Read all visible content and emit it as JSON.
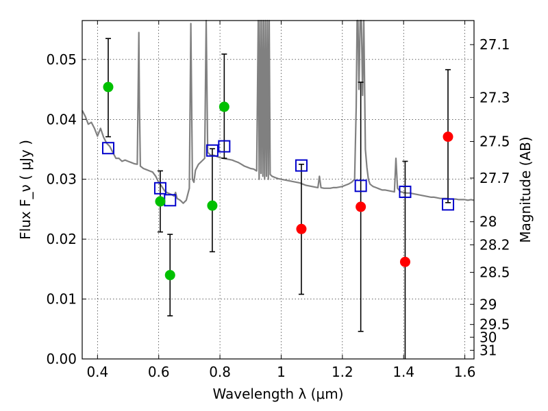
{
  "chart_data": {
    "type": "scatter",
    "title": "",
    "xlabel": "Wavelength  λ (μm)",
    "ylabel": "Flux  F_ν  ( μJy )",
    "ylabel_right": "Magnitude (AB)",
    "xlim": [
      0.35,
      1.63
    ],
    "ylim": [
      0.0,
      0.0565
    ],
    "x_ticks": [
      0.4,
      0.6,
      0.8,
      1.0,
      1.2,
      1.4,
      1.6
    ],
    "x_tick_labels": [
      "0.4",
      "0.6",
      "0.8",
      "1",
      "1.2",
      "1.4",
      "1.6"
    ],
    "y_ticks": [
      0.0,
      0.01,
      0.02,
      0.03,
      0.04,
      0.05
    ],
    "y_tick_labels": [
      "0.00",
      "0.01",
      "0.02",
      "0.03",
      "0.04",
      "0.05"
    ],
    "right_ticks": [
      {
        "mag": 27.1,
        "label": "27.1"
      },
      {
        "mag": 27.3,
        "label": "27.3"
      },
      {
        "mag": 27.5,
        "label": "27.5"
      },
      {
        "mag": 27.7,
        "label": "27.7"
      },
      {
        "mag": 28.0,
        "label": "28"
      },
      {
        "mag": 28.2,
        "label": "28.2"
      },
      {
        "mag": 28.5,
        "label": "28.5"
      },
      {
        "mag": 29.0,
        "label": "29"
      },
      {
        "mag": 29.5,
        "label": "29.5"
      },
      {
        "mag": 30.0,
        "label": "30"
      },
      {
        "mag": 31.0,
        "label": "31"
      }
    ],
    "grid": true,
    "colors": {
      "green": "#00c000",
      "red": "#ff0000",
      "model": "#808080",
      "box": "#0000cc",
      "error": "#000000"
    },
    "observed": [
      {
        "x": 0.435,
        "y": 0.0454,
        "err_low": 0.0371,
        "err_high": 0.0535,
        "color": "green"
      },
      {
        "x": 0.605,
        "y": 0.0263,
        "err_low": 0.0212,
        "err_high": 0.0314,
        "color": "green"
      },
      {
        "x": 0.637,
        "y": 0.014,
        "err_low": 0.0072,
        "err_high": 0.0208,
        "color": "green"
      },
      {
        "x": 0.775,
        "y": 0.0256,
        "err_low": 0.0179,
        "err_high": 0.0351,
        "color": "green"
      },
      {
        "x": 0.814,
        "y": 0.0421,
        "err_low": 0.0335,
        "err_high": 0.0509,
        "color": "green"
      },
      {
        "x": 1.066,
        "y": 0.0217,
        "err_low": 0.0108,
        "err_high": 0.0325,
        "color": "red"
      },
      {
        "x": 1.26,
        "y": 0.0254,
        "err_low": 0.0046,
        "err_high": 0.0462,
        "color": "red"
      },
      {
        "x": 1.405,
        "y": 0.0162,
        "err_low": 0.0,
        "err_high": 0.033,
        "color": "red"
      },
      {
        "x": 1.545,
        "y": 0.0371,
        "err_low": 0.0261,
        "err_high": 0.0483,
        "color": "red"
      }
    ],
    "model_points": [
      {
        "x": 0.435,
        "y": 0.0352
      },
      {
        "x": 0.605,
        "y": 0.0285
      },
      {
        "x": 0.637,
        "y": 0.0265
      },
      {
        "x": 0.775,
        "y": 0.0348
      },
      {
        "x": 0.814,
        "y": 0.0355
      },
      {
        "x": 1.066,
        "y": 0.0323
      },
      {
        "x": 1.26,
        "y": 0.0289
      },
      {
        "x": 1.405,
        "y": 0.0279
      },
      {
        "x": 1.545,
        "y": 0.0258
      }
    ],
    "model_spectrum": {
      "x": [
        0.35,
        0.36,
        0.37,
        0.38,
        0.39,
        0.4,
        0.41,
        0.42,
        0.43,
        0.44,
        0.45,
        0.46,
        0.47,
        0.48,
        0.49,
        0.5,
        0.51,
        0.52,
        0.53,
        0.535,
        0.537,
        0.54,
        0.55,
        0.56,
        0.57,
        0.58,
        0.59,
        0.6,
        0.61,
        0.62,
        0.63,
        0.64,
        0.65,
        0.655,
        0.658,
        0.66,
        0.67,
        0.68,
        0.69,
        0.7,
        0.705,
        0.71,
        0.715,
        0.72,
        0.73,
        0.74,
        0.75,
        0.755,
        0.76,
        0.77,
        0.78,
        0.79,
        0.8,
        0.81,
        0.82,
        0.83,
        0.84,
        0.85,
        0.86,
        0.87,
        0.88,
        0.89,
        0.9,
        0.91,
        0.92,
        0.925,
        0.928,
        0.931,
        0.934,
        0.937,
        0.94,
        0.943,
        0.946,
        0.949,
        0.952,
        0.955,
        0.958,
        0.961,
        0.964,
        0.97,
        0.98,
        0.99,
        1.0,
        1.01,
        1.02,
        1.03,
        1.04,
        1.05,
        1.06,
        1.07,
        1.08,
        1.09,
        1.1,
        1.11,
        1.12,
        1.125,
        1.13,
        1.14,
        1.15,
        1.16,
        1.17,
        1.18,
        1.19,
        1.2,
        1.21,
        1.22,
        1.23,
        1.24,
        1.245,
        1.248,
        1.251,
        1.254,
        1.258,
        1.262,
        1.266,
        1.27,
        1.275,
        1.28,
        1.285,
        1.29,
        1.3,
        1.31,
        1.32,
        1.33,
        1.34,
        1.35,
        1.36,
        1.37,
        1.375,
        1.38,
        1.39,
        1.4,
        1.41,
        1.42,
        1.43,
        1.44,
        1.45,
        1.46,
        1.47,
        1.48,
        1.49,
        1.5,
        1.51,
        1.52,
        1.53,
        1.54,
        1.55,
        1.56,
        1.57,
        1.58,
        1.59,
        1.6,
        1.61,
        1.62,
        1.63
      ],
      "y": [
        0.0415,
        0.0405,
        0.0392,
        0.0395,
        0.0385,
        0.0372,
        0.0385,
        0.037,
        0.036,
        0.0355,
        0.0345,
        0.0335,
        0.0335,
        0.033,
        0.0332,
        0.033,
        0.0328,
        0.0326,
        0.0325,
        0.0545,
        0.042,
        0.0322,
        0.0318,
        0.0316,
        0.0314,
        0.0312,
        0.0305,
        0.0295,
        0.0288,
        0.028,
        0.0277,
        0.0275,
        0.0272,
        0.0278,
        0.0272,
        0.0268,
        0.0265,
        0.026,
        0.0265,
        0.0285,
        0.056,
        0.03,
        0.0295,
        0.0315,
        0.0325,
        0.033,
        0.0335,
        0.0565,
        0.0345,
        0.034,
        0.034,
        0.0338,
        0.0336,
        0.0335,
        0.0334,
        0.0333,
        0.0332,
        0.033,
        0.0328,
        0.0325,
        0.0322,
        0.032,
        0.0318,
        0.0317,
        0.0314,
        0.0565,
        0.03,
        0.0565,
        0.031,
        0.0565,
        0.0305,
        0.0565,
        0.03,
        0.0565,
        0.0305,
        0.0565,
        0.03,
        0.0565,
        0.0308,
        0.0305,
        0.0303,
        0.0301,
        0.03,
        0.0299,
        0.0298,
        0.0297,
        0.0296,
        0.0295,
        0.0294,
        0.0292,
        0.029,
        0.0289,
        0.0288,
        0.0287,
        0.0286,
        0.0305,
        0.0286,
        0.0285,
        0.0285,
        0.0285,
        0.0286,
        0.0286,
        0.0287,
        0.0288,
        0.029,
        0.0292,
        0.0295,
        0.03,
        0.042,
        0.0565,
        0.0565,
        0.045,
        0.0565,
        0.0565,
        0.044,
        0.0565,
        0.035,
        0.032,
        0.03,
        0.0292,
        0.0288,
        0.0286,
        0.0284,
        0.0282,
        0.0282,
        0.0281,
        0.028,
        0.0279,
        0.0335,
        0.0285,
        0.0279,
        0.0278,
        0.0277,
        0.0277,
        0.0276,
        0.0275,
        0.0274,
        0.0273,
        0.0272,
        0.0271,
        0.027,
        0.027,
        0.0269,
        0.0268,
        0.0268,
        0.0268,
        0.0267,
        0.0267,
        0.0267,
        0.0266,
        0.0266,
        0.0266,
        0.0265,
        0.0266,
        0.0265
      ]
    }
  }
}
